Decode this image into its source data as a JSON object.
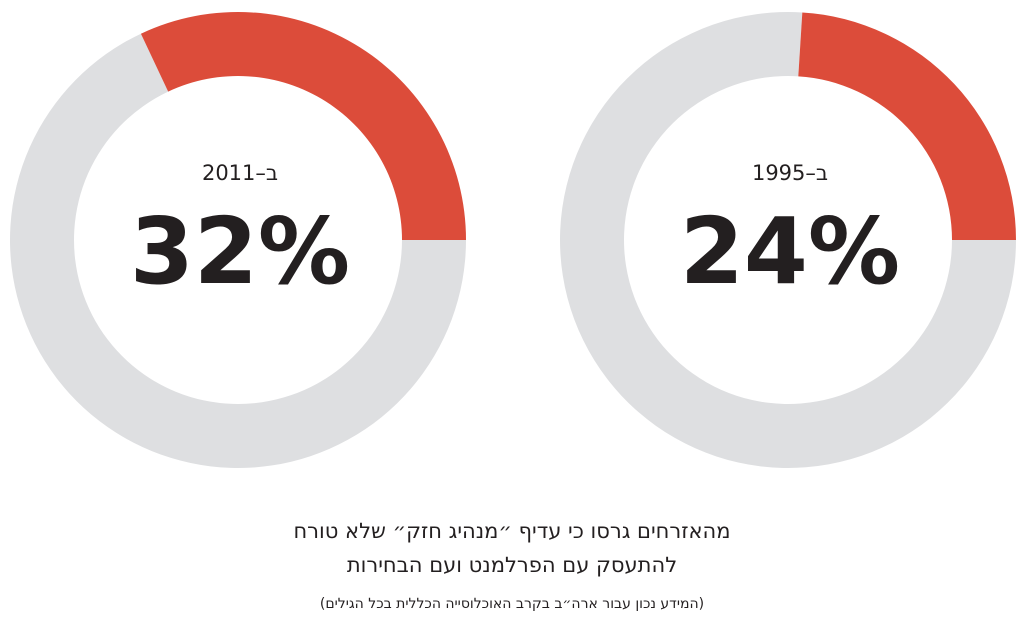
{
  "chart_data": [
    {
      "type": "donut",
      "label": "ב–2011",
      "value": 32,
      "value_label": "32%",
      "max": 100,
      "colors": {
        "filled": "#dc4c3a",
        "remainder": "#dedfe1"
      }
    },
    {
      "type": "donut",
      "label": "ב–1995",
      "value": 24,
      "value_label": "24%",
      "max": 100,
      "colors": {
        "filled": "#dc4c3a",
        "remainder": "#dedfe1"
      }
    }
  ],
  "caption": {
    "line1": "מהאזרחים גרסו כי עדיף ״מנהיג חזק״ שלא טורח",
    "line2": "להתעסק עם הפרלמנט ועם הבחירות",
    "note": "(המידע נכון עבור ארה״ב בקרב האוכלוסייה הכללית בכל הגילים)"
  }
}
